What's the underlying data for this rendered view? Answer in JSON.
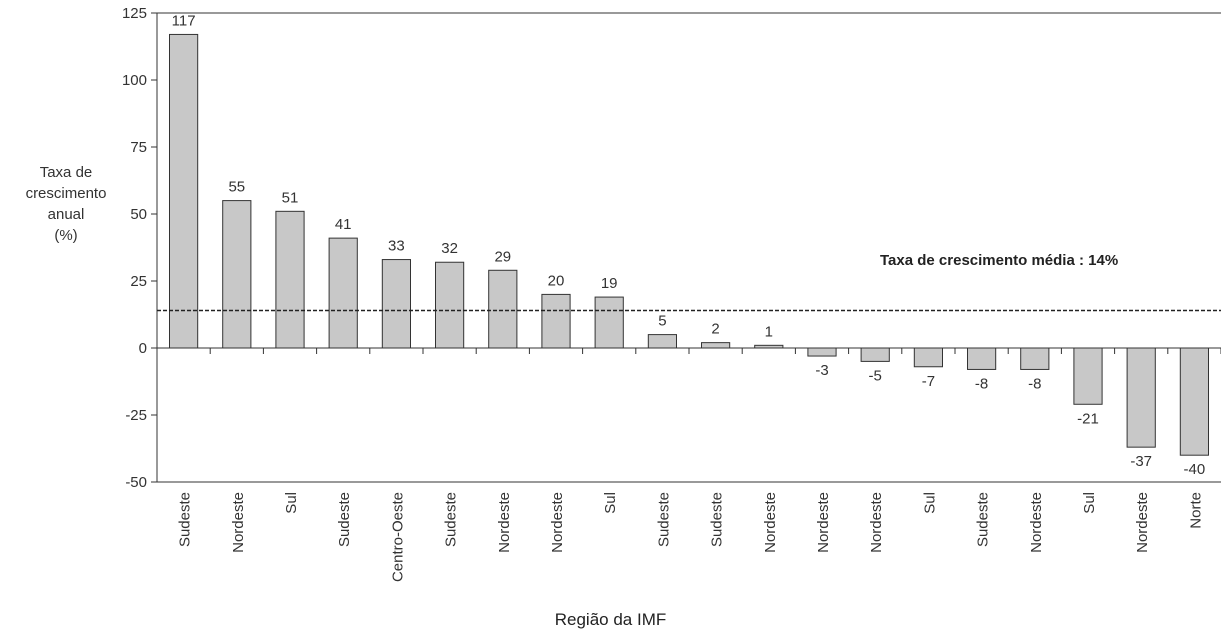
{
  "chart_data": {
    "type": "bar",
    "title": "",
    "ylabel_lines": [
      "Taxa de",
      "crescimento",
      "anual",
      "(%)"
    ],
    "xlabel": "Região da IMF",
    "categories": [
      "Sudeste",
      "Nordeste",
      "Sul",
      "Sudeste",
      "Centro-Oeste",
      "Sudeste",
      "Nordeste",
      "Nordeste",
      "Sul",
      "Sudeste",
      "Sudeste",
      "Nordeste",
      "Nordeste",
      "Nordeste",
      "Sul",
      "Sudeste",
      "Nordeste",
      "Sul",
      "Nordeste",
      "Norte"
    ],
    "values": [
      117,
      55,
      51,
      41,
      33,
      32,
      29,
      20,
      19,
      5,
      2,
      1,
      -3,
      -5,
      -7,
      -8,
      -8,
      -21,
      -37,
      -40
    ],
    "value_labels": [
      "117",
      "55",
      "51",
      "41",
      "33",
      "32",
      "29",
      "20",
      "19",
      "5",
      "2",
      "1",
      "-3",
      "-5",
      "-7",
      "-8",
      "-8",
      "-21",
      "-37",
      "-40"
    ],
    "ylim": [
      -50,
      125
    ],
    "yticks": [
      -50,
      -25,
      0,
      25,
      50,
      75,
      100,
      125
    ],
    "reference_line": {
      "value": 14,
      "label": "Taxa de crescimento média :  14%"
    },
    "grid": false,
    "bar_color": "#c8c8c8",
    "bar_edge_color": "#333333"
  }
}
